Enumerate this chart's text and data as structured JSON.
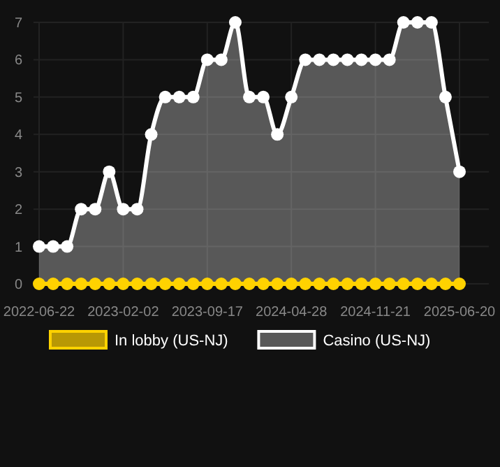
{
  "chart_data": {
    "type": "area",
    "categories": [
      "2022-06-22",
      null,
      null,
      null,
      null,
      null,
      "2023-02-02",
      null,
      null,
      null,
      null,
      null,
      "2023-09-17",
      null,
      null,
      null,
      null,
      null,
      "2024-04-28",
      null,
      null,
      null,
      null,
      null,
      "2024-11-21",
      null,
      null,
      null,
      null,
      null,
      "2025-06-20"
    ],
    "series": [
      {
        "name": "In lobby (US-NJ)",
        "type": "line",
        "color": "#ffd200",
        "values": [
          0,
          0,
          0,
          0,
          0,
          0,
          0,
          0,
          0,
          0,
          0,
          0,
          0,
          0,
          0,
          0,
          0,
          0,
          0,
          0,
          0,
          0,
          0,
          0,
          0,
          0,
          0,
          0,
          0,
          0,
          0
        ]
      },
      {
        "name": "Casino (US-NJ)",
        "color": "#ffffff",
        "values": [
          1,
          1,
          1,
          2,
          2,
          3,
          2,
          2,
          4,
          5,
          5,
          5,
          6,
          6,
          7,
          5,
          5,
          4,
          5,
          6,
          6,
          6,
          6,
          6,
          6,
          6,
          7,
          7,
          7,
          5,
          3
        ]
      }
    ],
    "ylim": [
      0,
      7
    ],
    "yticks": [
      0,
      1,
      2,
      3,
      4,
      5,
      6,
      7
    ],
    "grid": true,
    "legend": "bottom",
    "marker": "circle",
    "line_style": "solid"
  }
}
